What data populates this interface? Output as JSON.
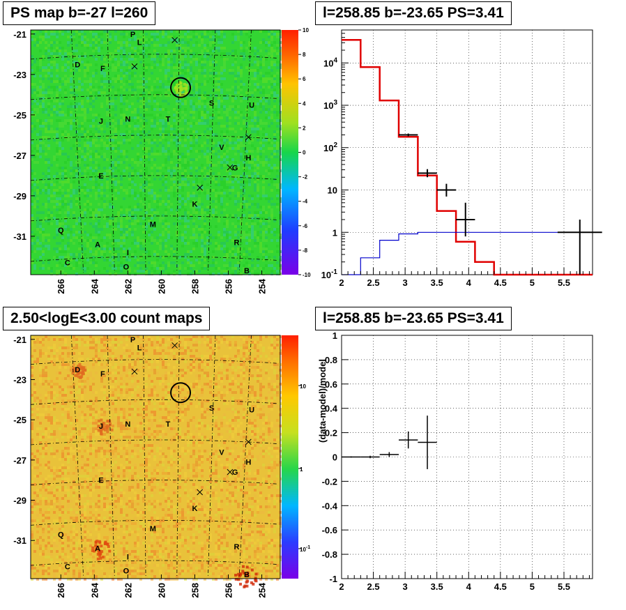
{
  "titles": {
    "map": "PS map b=-27 l=260",
    "spectrum": "l=258.85 b=-23.65 PS=3.41",
    "count_map": "2.50<logE<3.00 count maps",
    "residual": "l=258.85 b=-23.65 PS=3.41"
  },
  "map_axes": {
    "lat_ticks": [
      "-21",
      "-23",
      "-25",
      "-27",
      "-29",
      "-31"
    ],
    "lon_ticks": [
      "266",
      "264",
      "262",
      "260",
      "258",
      "256",
      "254"
    ]
  },
  "source_labels": [
    {
      "name": "P",
      "l": 261.7,
      "b": -21.0
    },
    {
      "name": "L",
      "l": 261.3,
      "b": -21.4
    },
    {
      "name": "D",
      "l": 265.0,
      "b": -22.5
    },
    {
      "name": "F",
      "l": 263.5,
      "b": -22.7
    },
    {
      "name": "S",
      "l": 257.0,
      "b": -24.4
    },
    {
      "name": "U",
      "l": 254.6,
      "b": -24.5
    },
    {
      "name": "J",
      "l": 263.6,
      "b": -25.3
    },
    {
      "name": "N",
      "l": 262.0,
      "b": -25.2
    },
    {
      "name": "T",
      "l": 259.6,
      "b": -25.2
    },
    {
      "name": "V",
      "l": 256.4,
      "b": -26.6
    },
    {
      "name": "H",
      "l": 254.8,
      "b": -27.1
    },
    {
      "name": "G",
      "l": 255.6,
      "b": -27.6
    },
    {
      "name": "E",
      "l": 263.6,
      "b": -28.0
    },
    {
      "name": "K",
      "l": 258.0,
      "b": -29.4
    },
    {
      "name": "M",
      "l": 260.5,
      "b": -30.4
    },
    {
      "name": "Q",
      "l": 266.0,
      "b": -30.7
    },
    {
      "name": "R",
      "l": 255.5,
      "b": -31.3
    },
    {
      "name": "A",
      "l": 263.8,
      "b": -31.4
    },
    {
      "name": "I",
      "l": 262.0,
      "b": -31.8
    },
    {
      "name": "C",
      "l": 265.6,
      "b": -32.3
    },
    {
      "name": "O",
      "l": 262.1,
      "b": -32.5
    },
    {
      "name": "B",
      "l": 254.9,
      "b": -32.7
    }
  ],
  "cross_markers": [
    {
      "l": 259.2,
      "b": -21.3
    },
    {
      "l": 261.6,
      "b": -22.6
    },
    {
      "l": 254.8,
      "b": -26.1
    },
    {
      "l": 255.9,
      "b": -27.6
    },
    {
      "l": 257.7,
      "b": -28.6
    }
  ],
  "target_circle": {
    "l": 258.85,
    "b": -23.65
  },
  "colorbars": {
    "ps": {
      "labels": [
        "10",
        "8",
        "6",
        "4",
        "2",
        "0",
        "-2",
        "-4",
        "-6",
        "-8",
        "-10"
      ]
    },
    "counts": {
      "labels": [
        "10",
        "1",
        "10-1"
      ]
    }
  },
  "colors": {
    "model": "#e00000",
    "ps_model": "#0000cc",
    "data": "#000000",
    "ps_background": "#33d633",
    "counts_background": "#e9c23a"
  },
  "chart_data": [
    {
      "type": "heatmap",
      "title": "PS map b=-27 l=260",
      "xlabel": "",
      "ylabel": "",
      "xlim": [
        267.8,
        252.9
      ],
      "ylim": [
        -32.9,
        -20.8
      ],
      "zlim": [
        -10,
        10
      ],
      "description_values": "TS map in galactic coordinates, mostly near 0 with hot spot at target"
    },
    {
      "type": "line",
      "title": "l=258.85 b=-23.65 PS=3.41",
      "xlabel": "",
      "ylabel": "",
      "xlim": [
        2,
        5.95
      ],
      "ylim": [
        0.1,
        60000
      ],
      "yscale": "log",
      "series": [
        {
          "name": "",
          "kind": "step",
          "color": "red",
          "edges": [
            2.0,
            2.3,
            2.6,
            2.9,
            3.2,
            3.5,
            3.8,
            4.1,
            4.4,
            5.95
          ],
          "values": [
            35000,
            8000,
            1300,
            180,
            22,
            3.2,
            0.6,
            0.2,
            0.1
          ]
        },
        {
          "name": "",
          "kind": "step",
          "color": "blue",
          "edges": [
            2.0,
            2.3,
            2.6,
            2.9,
            3.2,
            3.5,
            3.8,
            4.1,
            4.4,
            5.95
          ],
          "values": [
            0.1,
            0.25,
            0.65,
            0.92,
            1.0,
            1.0,
            1.0,
            1.0,
            1.0
          ]
        },
        {
          "name": "",
          "kind": "errorbar",
          "color": "black",
          "points": [
            {
              "x": 3.05,
              "xerr": 0.15,
              "y": 200,
              "ylo": 185,
              "yhi": 215
            },
            {
              "x": 3.35,
              "xerr": 0.15,
              "y": 25,
              "ylo": 20,
              "yhi": 31
            },
            {
              "x": 3.65,
              "xerr": 0.15,
              "y": 10,
              "ylo": 7,
              "yhi": 14
            },
            {
              "x": 3.95,
              "xerr": 0.15,
              "y": 2,
              "ylo": 0.8,
              "yhi": 5
            },
            {
              "x": 5.75,
              "xerr": 0.35,
              "y": 1,
              "ylo": 0.1,
              "yhi": 2
            }
          ]
        }
      ],
      "xticks": [
        "2",
        "2.5",
        "3",
        "3.5",
        "4",
        "4.5",
        "5",
        "5.5"
      ],
      "yticks": [
        "10<sup>-1</sup>",
        "1",
        "10",
        "10<sup>2</sup>",
        "10<sup>3</sup>",
        "10<sup>4</sup>"
      ],
      "grid": true
    },
    {
      "type": "heatmap",
      "title": "2.50<logE<3.00 count maps",
      "xlabel": "",
      "ylabel": "",
      "xlim": [
        267.8,
        252.9
      ],
      "ylim": [
        -32.9,
        -20.8
      ],
      "zscale": "log"
    },
    {
      "type": "scatter",
      "title": "l=258.85 b=-23.65 PS=3.41",
      "xlabel": "",
      "ylabel": "(data-model)/model",
      "xlim": [
        2,
        5.95
      ],
      "ylim": [
        -1,
        1
      ],
      "points": [
        {
          "x": 2.15,
          "xerr": 0.15,
          "y": 0.0,
          "yerr": 0.005
        },
        {
          "x": 2.45,
          "xerr": 0.15,
          "y": 0.0,
          "yerr": 0.01
        },
        {
          "x": 2.75,
          "xerr": 0.15,
          "y": 0.02,
          "yerr": 0.02
        },
        {
          "x": 3.05,
          "xerr": 0.15,
          "y": 0.14,
          "yerr": 0.07
        },
        {
          "x": 3.35,
          "xerr": 0.15,
          "y": 0.12,
          "yerr": 0.22
        }
      ],
      "xticks": [
        "2",
        "2.5",
        "3",
        "3.5",
        "4",
        "4.5",
        "5",
        "5.5"
      ],
      "yticks": [
        "-1",
        "-0.8",
        "-0.6",
        "-0.4",
        "-0.2",
        "0",
        "0.2",
        "0.4",
        "0.6",
        "0.8",
        "1"
      ],
      "grid": true
    }
  ]
}
